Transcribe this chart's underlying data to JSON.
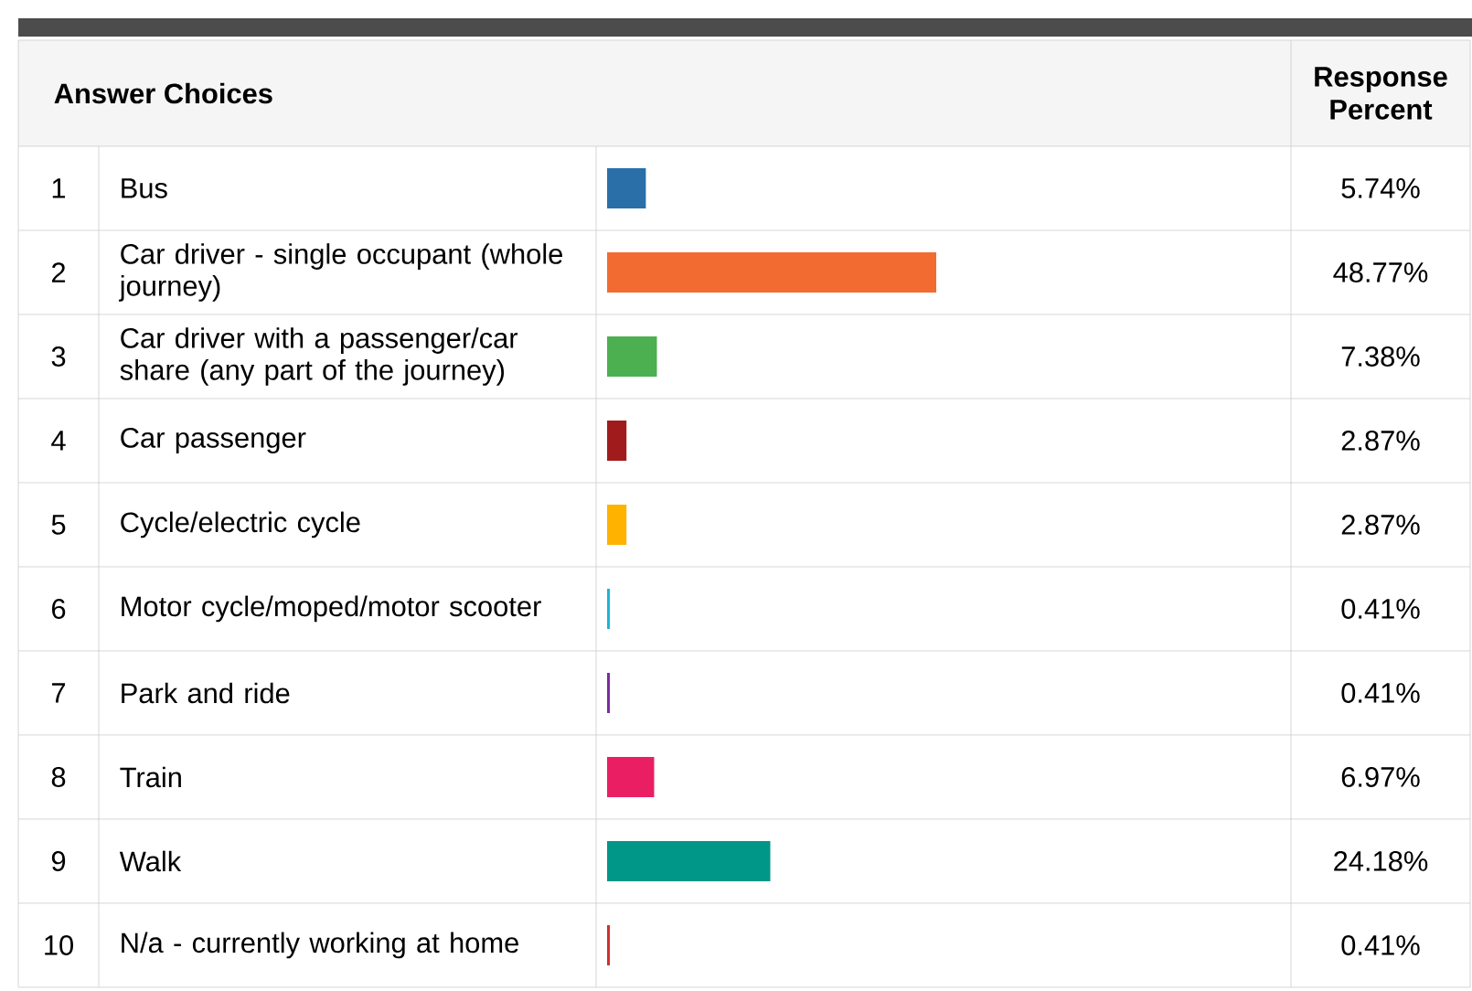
{
  "chart_data": {
    "type": "bar",
    "orientation": "horizontal",
    "ylabel": "Answer Choices",
    "categories": [
      "Bus",
      "Car driver - single occupant (whole journey)",
      "Car driver with a passenger/car share (any part of the journey)",
      "Car passenger",
      "Cycle/electric cycle",
      "Motor cycle/moped/motor scooter",
      "Park and ride",
      "Train",
      "Walk",
      "N/a - currently working at home"
    ],
    "values": [
      5.74,
      48.77,
      7.38,
      2.87,
      2.87,
      0.41,
      0.41,
      6.97,
      24.18,
      0.41
    ],
    "value_labels": [
      "5.74%",
      "48.77%",
      "7.38%",
      "2.87%",
      "2.87%",
      "0.41%",
      "0.41%",
      "6.97%",
      "24.18%",
      "0.41%"
    ],
    "colors": [
      "#2a6fa8",
      "#f26b30",
      "#4caf50",
      "#a01c1c",
      "#ffb300",
      "#1ab6d6",
      "#7b2ba0",
      "#e91e63",
      "#009688",
      "#d32f2f"
    ],
    "annotations": [
      "Response Percent",
      "1",
      "2",
      "3",
      "4",
      "5",
      "6",
      "7",
      "8",
      "9",
      "10"
    ],
    "tick_labels": false
  }
}
